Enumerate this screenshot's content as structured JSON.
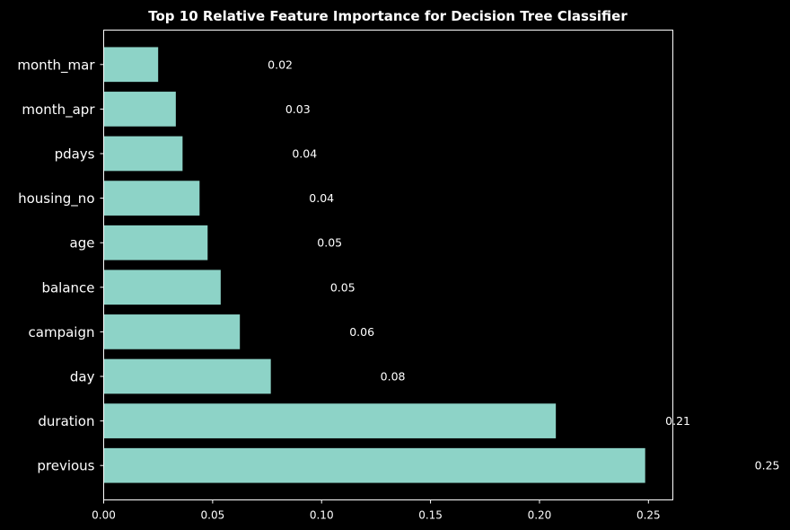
{
  "chart_data": {
    "type": "bar",
    "orientation": "horizontal",
    "title": "Top 10 Relative Feature Importance for Decision Tree Classifier",
    "xlabel": "",
    "ylabel": "",
    "categories": [
      "previous",
      "duration",
      "day",
      "campaign",
      "balance",
      "age",
      "housing_no",
      "pdays",
      "month_apr",
      "month_mar"
    ],
    "values": [
      0.2485,
      0.2075,
      0.0767,
      0.0625,
      0.0537,
      0.0477,
      0.044,
      0.0362,
      0.0331,
      0.025
    ],
    "data_labels": [
      "0.25",
      "0.21",
      "0.08",
      "0.06",
      "0.05",
      "0.05",
      "0.04",
      "0.04",
      "0.03",
      "0.02"
    ],
    "xticks": [
      "0.00",
      "0.05",
      "0.10",
      "0.15",
      "0.20",
      "0.25"
    ],
    "xlim": [
      0,
      0.2612
    ],
    "grid": false,
    "legend": "none",
    "bar_color": "#8dd3c7",
    "background_color": "#000000",
    "text_color": "#ffffff"
  }
}
